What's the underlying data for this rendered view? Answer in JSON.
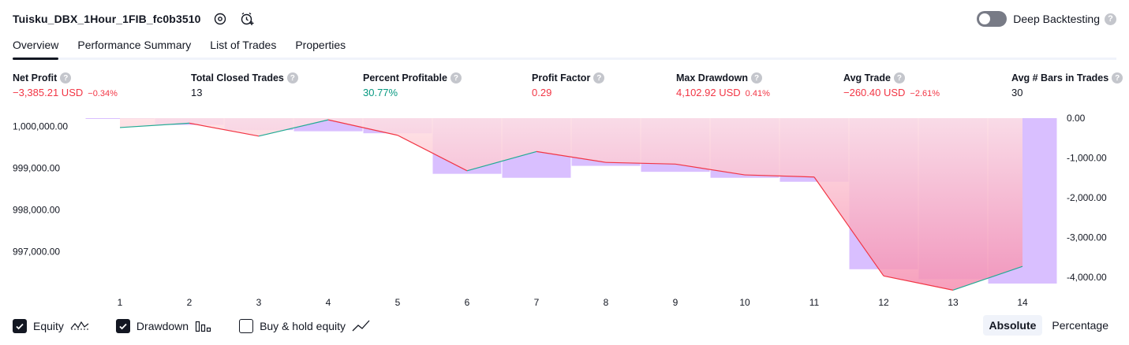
{
  "header": {
    "title": "Tuisku_DBX_1Hour_1FIB_fc0b3510",
    "settings_icon": "gear-icon",
    "alert_icon": "alarm-clock-plus-icon",
    "deep_backtesting_label": "Deep Backtesting",
    "deep_backtesting_enabled": false
  },
  "tabs": [
    {
      "label": "Overview",
      "active": true
    },
    {
      "label": "Performance Summary",
      "active": false
    },
    {
      "label": "List of Trades",
      "active": false
    },
    {
      "label": "Properties",
      "active": false
    }
  ],
  "metrics": [
    {
      "label": "Net Profit",
      "value": "−3,385.21 USD",
      "pct": "−0.34%",
      "tone": "neg"
    },
    {
      "label": "Total Closed Trades",
      "value": "13",
      "pct": "",
      "tone": "neutral"
    },
    {
      "label": "Percent Profitable",
      "value": "30.77%",
      "pct": "",
      "tone": "pos"
    },
    {
      "label": "Profit Factor",
      "value": "0.29",
      "pct": "",
      "tone": "neg"
    },
    {
      "label": "Max Drawdown",
      "value": "4,102.92 USD",
      "pct": "0.41%",
      "tone": "neg"
    },
    {
      "label": "Avg Trade",
      "value": "−260.40 USD",
      "pct": "−2.61%",
      "tone": "neg"
    },
    {
      "label": "Avg # Bars in Trades",
      "value": "30",
      "pct": "",
      "tone": "neutral"
    }
  ],
  "chart_data": {
    "type": "line",
    "x": [
      1,
      2,
      3,
      4,
      5,
      6,
      7,
      8,
      9,
      10,
      11,
      12,
      13,
      14
    ],
    "x_tick_labels": [
      "1",
      "2",
      "3",
      "4",
      "5",
      "6",
      "7",
      "8",
      "9",
      "10",
      "11",
      "12",
      "13",
      "14"
    ],
    "series": [
      {
        "name": "Equity",
        "axis": "left",
        "values": [
          999975,
          1000080,
          999770,
          1000160,
          999790,
          998940,
          999400,
          999140,
          999100,
          998840,
          998790,
          996420,
          996080,
          996650
        ]
      },
      {
        "name": "Drawdown",
        "axis": "right",
        "type": "bar",
        "values": [
          0,
          -170,
          -300,
          -330,
          -380,
          -1400,
          -1500,
          -1200,
          -1350,
          -1500,
          -1600,
          -3800,
          -4050,
          -4160
        ]
      }
    ],
    "left_axis": {
      "ylim": [
        996200,
        1000200
      ],
      "ticks": [
        "1,000,000.00",
        "999,000.00",
        "998,000.00",
        "997,000.00"
      ],
      "tick_values": [
        1000000,
        999000,
        998000,
        997000
      ]
    },
    "right_axis": {
      "ylim": [
        -4200,
        0
      ],
      "ticks": [
        "0.00",
        "-1,000.00",
        "-2,000.00",
        "-3,000.00",
        "-4,000.00"
      ],
      "tick_values": [
        0,
        -1000,
        -2000,
        -3000,
        -4000
      ]
    },
    "colors": {
      "equity_up": "#22ab94",
      "equity_down": "#f23645",
      "drawdown_bar": "#d9bfff",
      "area_top": "#ffe0e3",
      "area_bottom": "#f58fb1"
    }
  },
  "legend": [
    {
      "label": "Equity",
      "checked": true,
      "icon": "equity-line-icon"
    },
    {
      "label": "Drawdown",
      "checked": true,
      "icon": "bar-chart-icon"
    },
    {
      "label": "Buy & hold equity",
      "checked": false,
      "icon": "trend-line-icon"
    }
  ],
  "modes": [
    {
      "label": "Absolute",
      "active": true
    },
    {
      "label": "Percentage",
      "active": false
    }
  ]
}
